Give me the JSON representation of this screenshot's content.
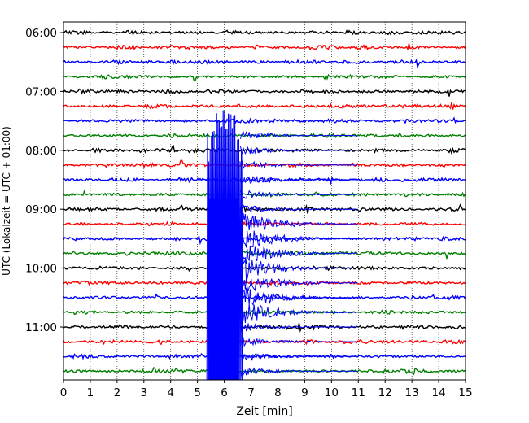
{
  "chart_data": {
    "type": "line",
    "title": "",
    "xlabel": "Zeit  [min]",
    "ylabel": "UTC (Lokalzeit = UTC + 01:00)",
    "xlim": [
      0,
      15
    ],
    "x_ticks": [
      0,
      1,
      2,
      3,
      4,
      5,
      6,
      7,
      8,
      9,
      10,
      11,
      12,
      13,
      14,
      15
    ],
    "y_ticks": [
      "06:00",
      "07:00",
      "08:00",
      "09:00",
      "10:00",
      "11:00"
    ],
    "vertical_grid": "dotted",
    "trace_interval_minutes": 15,
    "trace_colors": [
      "#000000",
      "#ff0000",
      "#0000ff",
      "#008000"
    ],
    "traces": [
      {
        "time": "06:00",
        "spikes": []
      },
      {
        "time": "06:15",
        "spikes": [
          2.6,
          7.2,
          12.9
        ]
      },
      {
        "time": "06:30",
        "spikes": [
          8.3,
          13.2
        ]
      },
      {
        "time": "06:45",
        "spikes": [
          4.9
        ]
      },
      {
        "time": "07:00",
        "spikes": [
          8.9,
          14.4
        ]
      },
      {
        "time": "07:15",
        "spikes": [
          14.5
        ]
      },
      {
        "time": "07:30",
        "spikes": [
          14.6
        ]
      },
      {
        "time": "07:45",
        "spikes": [
          9.3
        ]
      },
      {
        "time": "08:00",
        "spikes": [
          4.1,
          8.5,
          14.5
        ]
      },
      {
        "time": "08:15",
        "spikes": [
          4.4,
          14.2
        ]
      },
      {
        "time": "08:30",
        "spikes": [
          10.0
        ]
      },
      {
        "time": "08:45",
        "spikes": [
          0.8,
          10.6
        ]
      },
      {
        "time": "09:00",
        "spikes": [
          4.4,
          9.1,
          14.8
        ]
      },
      {
        "time": "09:15",
        "spikes": [
          9.8
        ]
      },
      {
        "time": "09:30",
        "spikes": [
          5.1
        ]
      },
      {
        "time": "09:45",
        "spikes": [
          0.4,
          14.3
        ]
      },
      {
        "time": "10:00",
        "spikes": [
          4.7,
          14.8
        ]
      },
      {
        "time": "10:15",
        "spikes": [
          9.1
        ]
      },
      {
        "time": "10:30",
        "spikes": [
          3.5,
          13.8
        ]
      },
      {
        "time": "10:45",
        "spikes": [
          8.4
        ]
      },
      {
        "time": "11:00",
        "spikes": [
          8.8
        ]
      },
      {
        "time": "11:15",
        "spikes": [
          3.6,
          13.5
        ]
      },
      {
        "time": "11:30",
        "spikes": [
          5.1,
          10.0
        ]
      },
      {
        "time": "11:45",
        "spikes": [
          3.4,
          13.1
        ]
      }
    ],
    "event": {
      "start_trace": "07:45",
      "end_trace": "11:45",
      "x_start": 5.35,
      "x_peak": 6.05,
      "decay_to_x": 11.0,
      "color": "#0000ff"
    }
  }
}
